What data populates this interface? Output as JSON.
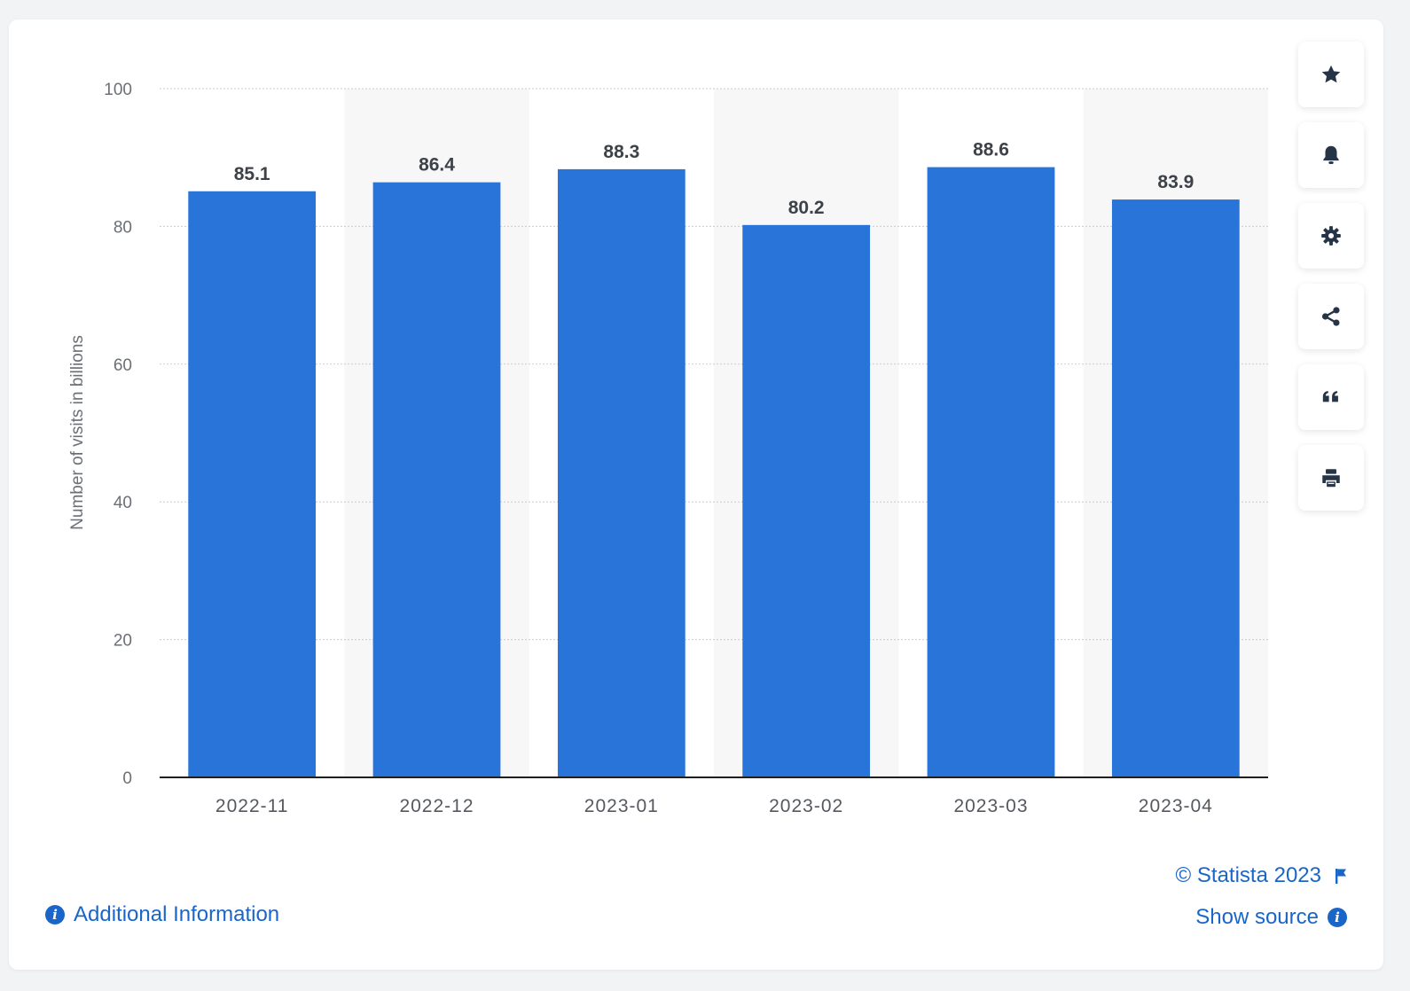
{
  "chart_data": {
    "type": "bar",
    "categories": [
      "2022-11",
      "2022-12",
      "2023-01",
      "2023-02",
      "2023-03",
      "2023-04"
    ],
    "values": [
      85.1,
      86.4,
      88.3,
      80.2,
      88.6,
      83.9
    ],
    "data_labels": [
      "85.1",
      "86.4",
      "88.3",
      "80.2",
      "88.6",
      "83.9"
    ],
    "xlabel": "",
    "ylabel": "Number of visits in billions",
    "ylim": [
      0,
      100
    ],
    "yticks": [
      0,
      20,
      40,
      60,
      80,
      100
    ],
    "grid": true,
    "bar_color": "#2874d9",
    "alt_band_color": "#f7f7f8"
  },
  "toolbar": {
    "buttons": [
      {
        "name": "star-icon"
      },
      {
        "name": "bell-icon"
      },
      {
        "name": "gear-icon"
      },
      {
        "name": "share-icon"
      },
      {
        "name": "quote-icon"
      },
      {
        "name": "print-icon"
      }
    ]
  },
  "footer": {
    "additional_info": "Additional Information",
    "copyright": "© Statista 2023",
    "show_source": "Show source"
  },
  "colors": {
    "link": "#1a66c8",
    "axis_text": "#6b6f76",
    "label_text": "#3d4148"
  }
}
